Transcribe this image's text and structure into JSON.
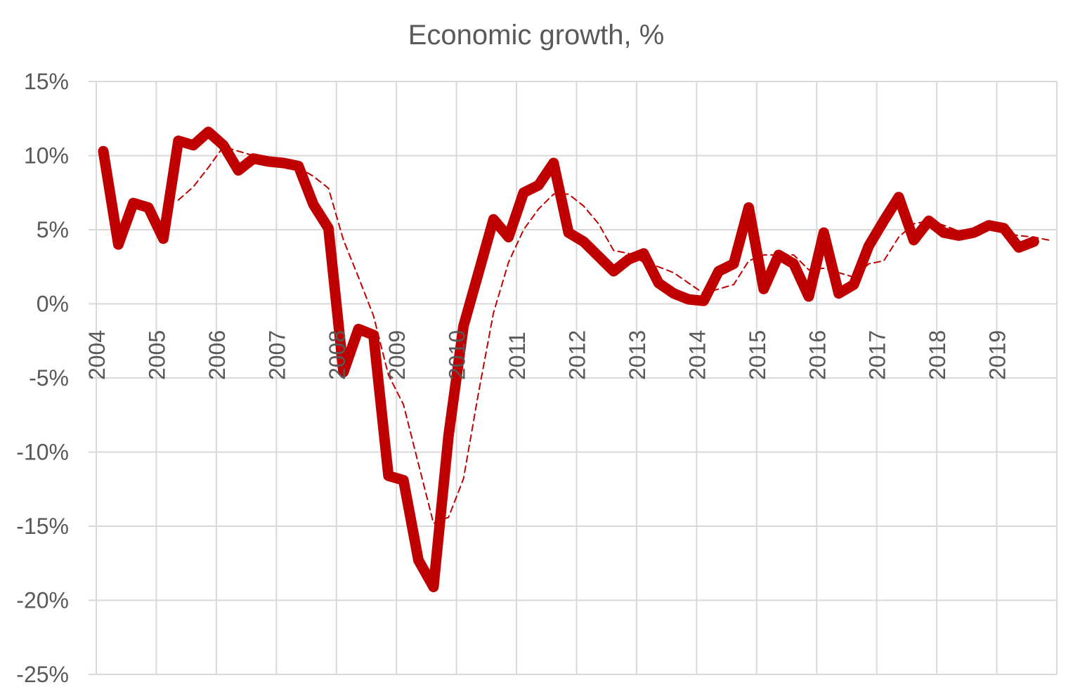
{
  "chart_data": {
    "type": "line",
    "title": "Economic growth, %",
    "xlabel": "",
    "ylabel": "",
    "ylim": [
      -25,
      15
    ],
    "xlim": [
      2004,
      2020
    ],
    "grid": true,
    "legend": "none",
    "y_ticks": [
      "15%",
      "10%",
      "5%",
      "0%",
      "-5%",
      "-10%",
      "-15%",
      "-20%",
      "-25%"
    ],
    "y_tick_values": [
      15,
      10,
      5,
      0,
      -5,
      -10,
      -15,
      -20,
      -25
    ],
    "x_ticks": [
      "2004",
      "2005",
      "2006",
      "2007",
      "2008",
      "2009",
      "2010",
      "2011",
      "2012",
      "2013",
      "2014",
      "2015",
      "2016",
      "2017",
      "2018",
      "2019"
    ],
    "x": [
      2004.0,
      2004.25,
      2004.5,
      2004.75,
      2005.0,
      2005.25,
      2005.5,
      2005.75,
      2006.0,
      2006.25,
      2006.5,
      2006.75,
      2007.0,
      2007.25,
      2007.5,
      2007.75,
      2008.0,
      2008.25,
      2008.5,
      2008.75,
      2009.0,
      2009.25,
      2009.5,
      2009.75,
      2010.0,
      2010.25,
      2010.5,
      2010.75,
      2011.0,
      2011.25,
      2011.5,
      2011.75,
      2012.0,
      2012.25,
      2012.5,
      2012.75,
      2013.0,
      2013.25,
      2013.5,
      2013.75,
      2014.0,
      2014.25,
      2014.5,
      2014.75,
      2015.0,
      2015.25,
      2015.5,
      2015.75,
      2016.0,
      2016.25,
      2016.5,
      2016.75,
      2017.0,
      2017.25,
      2017.5,
      2017.75,
      2018.0,
      2018.25,
      2018.5,
      2018.75,
      2019.0,
      2019.25,
      2019.5,
      2019.75
    ],
    "series": [
      {
        "style": "thick-solid",
        "color": "#C00000",
        "values": [
          10.3,
          4.0,
          6.8,
          6.5,
          4.4,
          11.0,
          10.7,
          11.6,
          10.7,
          9.0,
          9.8,
          9.6,
          9.5,
          9.3,
          6.7,
          5.1,
          -4.6,
          -1.7,
          -2.1,
          -11.6,
          -11.9,
          -17.3,
          -19.1,
          -8.9,
          -1.5,
          2.1,
          5.7,
          4.5,
          7.5,
          8.0,
          9.5,
          4.8,
          4.2,
          3.2,
          2.2,
          3.0,
          3.4,
          1.4,
          0.7,
          0.3,
          0.2,
          2.2,
          2.7,
          6.5,
          1.0,
          3.3,
          2.7,
          0.5,
          4.8,
          0.7,
          1.3,
          3.9,
          5.6,
          7.2,
          4.3,
          5.6,
          4.8,
          4.6,
          4.8,
          5.3,
          5.1,
          3.8,
          4.2,
          null
        ]
      },
      {
        "style": "thin-dashed",
        "color": "#C00000",
        "values": [
          null,
          null,
          null,
          null,
          null,
          7.0,
          7.9,
          9.2,
          10.6,
          10.3,
          10.0,
          9.7,
          9.5,
          9.2,
          8.6,
          7.8,
          4.3,
          1.8,
          -0.8,
          -4.8,
          -6.8,
          -10.8,
          -14.8,
          -14.4,
          -11.8,
          -6.0,
          -0.6,
          2.8,
          5.0,
          6.4,
          7.4,
          7.4,
          6.6,
          5.4,
          3.6,
          3.4,
          2.8,
          2.5,
          2.1,
          1.4,
          0.7,
          1.0,
          1.3,
          2.9,
          3.3,
          3.3,
          3.3,
          2.3,
          2.4,
          2.1,
          1.8,
          2.7,
          2.9,
          4.5,
          5.4,
          5.6,
          5.3,
          4.9,
          4.8,
          5.0,
          4.8,
          4.6,
          4.5,
          4.3
        ]
      }
    ]
  }
}
